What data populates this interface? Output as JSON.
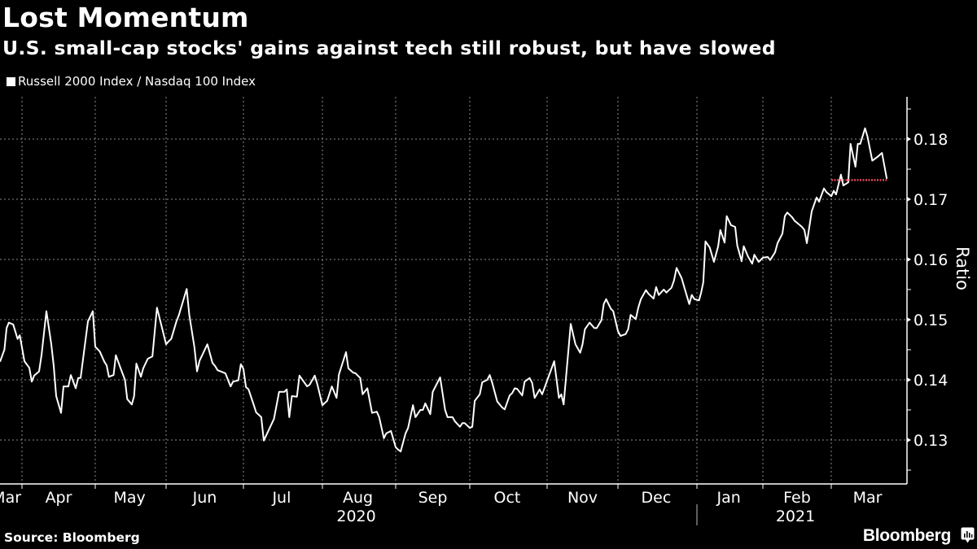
{
  "header": {
    "title": "Lost Momentum",
    "subtitle": "U.S. small-cap stocks' gains against tech still robust, but have slowed"
  },
  "footer": {
    "source": "Source: Bloomberg",
    "brand": "Bloomberg"
  },
  "icons": {
    "brand_icon": "bloomberg-chart-icon",
    "legend_swatch": "square-swatch"
  },
  "colors": {
    "background": "#000000",
    "line": "#ffffff",
    "reference_line": "#e0455a",
    "grid": "#8a8a8a"
  },
  "chart_data": {
    "type": "line",
    "title": "Lost Momentum",
    "subtitle": "U.S. small-cap stocks' gains against tech still robust, but have slowed",
    "xlabel": "",
    "ylabel": "Ratio",
    "legend": {
      "position": "top-left",
      "entries": [
        "Russell 2000 Index / Nasdaq 100 Index"
      ]
    },
    "grid": true,
    "ylim": [
      0.1227,
      0.187
    ],
    "xlim": [
      "2020-03-22",
      "2021-03-31"
    ],
    "y_ticks": [
      0.13,
      0.14,
      0.15,
      0.16,
      0.17,
      0.18
    ],
    "y_tick_labels": [
      "0.13",
      "0.14",
      "0.15",
      "0.16",
      "0.17",
      "0.18"
    ],
    "x_ticks": [
      {
        "label": "Mar",
        "date": "2020-03-25"
      },
      {
        "label": "Apr",
        "date": "2020-04-16"
      },
      {
        "label": "May",
        "date": "2020-05-16"
      },
      {
        "label": "Jun",
        "date": "2020-06-16"
      },
      {
        "label": "Jul",
        "date": "2020-07-16"
      },
      {
        "label": "Aug",
        "date": "2020-08-16"
      },
      {
        "label": "Sep",
        "date": "2020-09-16"
      },
      {
        "label": "Oct",
        "date": "2020-10-16"
      },
      {
        "label": "Nov",
        "date": "2020-11-16"
      },
      {
        "label": "Dec",
        "date": "2020-12-16"
      },
      {
        "label": "Jan",
        "date": "2021-01-16"
      },
      {
        "label": "Feb",
        "date": "2021-02-15"
      },
      {
        "label": "Mar",
        "date": "2021-03-16"
      }
    ],
    "year_labels": [
      {
        "label": "2020",
        "date": "2020-08-16"
      },
      {
        "label": "2021",
        "date": "2021-02-15"
      }
    ],
    "series": [
      {
        "name": "Russell 2000 Index / Nasdaq 100 Index",
        "points": [
          [
            "2020-03-22",
            0.143
          ],
          [
            "2020-03-24",
            0.145
          ],
          [
            "2020-03-25",
            0.1486
          ],
          [
            "2020-03-26",
            0.1495
          ],
          [
            "2020-03-28",
            0.1492
          ],
          [
            "2020-03-30",
            0.1468
          ],
          [
            "2020-03-31",
            0.1474
          ],
          [
            "2020-04-02",
            0.1431
          ],
          [
            "2020-04-04",
            0.142
          ],
          [
            "2020-04-05",
            0.1397
          ],
          [
            "2020-04-06",
            0.1407
          ],
          [
            "2020-04-08",
            0.1414
          ],
          [
            "2020-04-09",
            0.1441
          ],
          [
            "2020-04-11",
            0.1514
          ],
          [
            "2020-04-13",
            0.1459
          ],
          [
            "2020-04-14",
            0.1423
          ],
          [
            "2020-04-15",
            0.1373
          ],
          [
            "2020-04-17",
            0.1345
          ],
          [
            "2020-04-18",
            0.1389
          ],
          [
            "2020-04-20",
            0.1389
          ],
          [
            "2020-04-21",
            0.1408
          ],
          [
            "2020-04-23",
            0.1386
          ],
          [
            "2020-04-24",
            0.1403
          ],
          [
            "2020-04-25",
            0.1403
          ],
          [
            "2020-04-28",
            0.1497
          ],
          [
            "2020-04-30",
            0.1514
          ],
          [
            "2020-05-01",
            0.1455
          ],
          [
            "2020-05-03",
            0.1447
          ],
          [
            "2020-05-05",
            0.143
          ],
          [
            "2020-05-06",
            0.1424
          ],
          [
            "2020-05-07",
            0.1405
          ],
          [
            "2020-05-09",
            0.1408
          ],
          [
            "2020-05-10",
            0.1441
          ],
          [
            "2020-05-12",
            0.142
          ],
          [
            "2020-05-14",
            0.14
          ],
          [
            "2020-05-15",
            0.1368
          ],
          [
            "2020-05-17",
            0.1359
          ],
          [
            "2020-05-18",
            0.1373
          ],
          [
            "2020-05-19",
            0.1427
          ],
          [
            "2020-05-21",
            0.1405
          ],
          [
            "2020-05-22",
            0.1419
          ],
          [
            "2020-05-24",
            0.1435
          ],
          [
            "2020-05-26",
            0.1439
          ],
          [
            "2020-05-28",
            0.152
          ],
          [
            "2020-06-01",
            0.1459
          ],
          [
            "2020-06-02",
            0.1464
          ],
          [
            "2020-06-03",
            0.1468
          ],
          [
            "2020-06-05",
            0.1497
          ],
          [
            "2020-06-06",
            0.1508
          ],
          [
            "2020-06-09",
            0.1551
          ],
          [
            "2020-06-10",
            0.1508
          ],
          [
            "2020-06-12",
            0.1454
          ],
          [
            "2020-06-13",
            0.1414
          ],
          [
            "2020-06-14",
            0.1432
          ],
          [
            "2020-06-17",
            0.1459
          ],
          [
            "2020-06-19",
            0.1428
          ],
          [
            "2020-06-20",
            0.1423
          ],
          [
            "2020-06-21",
            0.1416
          ],
          [
            "2020-06-24",
            0.1411
          ],
          [
            "2020-06-26",
            0.1389
          ],
          [
            "2020-06-27",
            0.1397
          ],
          [
            "2020-06-29",
            0.1399
          ],
          [
            "2020-06-30",
            0.1426
          ],
          [
            "2020-07-01",
            0.1418
          ],
          [
            "2020-07-02",
            0.1388
          ],
          [
            "2020-07-03",
            0.1384
          ],
          [
            "2020-07-05",
            0.1359
          ],
          [
            "2020-07-06",
            0.1346
          ],
          [
            "2020-07-08",
            0.1338
          ],
          [
            "2020-07-09",
            0.1299
          ],
          [
            "2020-07-13",
            0.1335
          ],
          [
            "2020-07-15",
            0.138
          ],
          [
            "2020-07-17",
            0.138
          ],
          [
            "2020-07-18",
            0.1384
          ],
          [
            "2020-07-19",
            0.1338
          ],
          [
            "2020-07-20",
            0.1373
          ],
          [
            "2020-07-22",
            0.1372
          ],
          [
            "2020-07-23",
            0.1407
          ],
          [
            "2020-07-26",
            0.1389
          ],
          [
            "2020-07-27",
            0.1392
          ],
          [
            "2020-07-29",
            0.1407
          ],
          [
            "2020-07-30",
            0.1393
          ],
          [
            "2020-08-01",
            0.1358
          ],
          [
            "2020-08-03",
            0.1365
          ],
          [
            "2020-08-05",
            0.1389
          ],
          [
            "2020-08-07",
            0.137
          ],
          [
            "2020-08-08",
            0.1409
          ],
          [
            "2020-08-11",
            0.1446
          ],
          [
            "2020-08-12",
            0.1419
          ],
          [
            "2020-08-14",
            0.1412
          ],
          [
            "2020-08-15",
            0.1411
          ],
          [
            "2020-08-17",
            0.1403
          ],
          [
            "2020-08-18",
            0.1376
          ],
          [
            "2020-08-20",
            0.1386
          ],
          [
            "2020-08-22",
            0.1345
          ],
          [
            "2020-08-24",
            0.1347
          ],
          [
            "2020-08-25",
            0.1338
          ],
          [
            "2020-08-27",
            0.1303
          ],
          [
            "2020-08-28",
            0.1311
          ],
          [
            "2020-08-30",
            0.1315
          ],
          [
            "2020-09-01",
            0.1288
          ],
          [
            "2020-09-02",
            0.1284
          ],
          [
            "2020-09-03",
            0.1281
          ],
          [
            "2020-09-05",
            0.1311
          ],
          [
            "2020-09-06",
            0.132
          ],
          [
            "2020-09-08",
            0.1358
          ],
          [
            "2020-09-09",
            0.1338
          ],
          [
            "2020-09-11",
            0.135
          ],
          [
            "2020-09-12",
            0.135
          ],
          [
            "2020-09-13",
            0.1361
          ],
          [
            "2020-09-15",
            0.1343
          ],
          [
            "2020-09-16",
            0.138
          ],
          [
            "2020-09-19",
            0.1404
          ],
          [
            "2020-09-21",
            0.135
          ],
          [
            "2020-09-22",
            0.1338
          ],
          [
            "2020-09-24",
            0.1338
          ],
          [
            "2020-09-25",
            0.1331
          ],
          [
            "2020-09-27",
            0.1322
          ],
          [
            "2020-09-28",
            0.1328
          ],
          [
            "2020-09-29",
            0.1328
          ],
          [
            "2020-10-01",
            0.132
          ],
          [
            "2020-10-02",
            0.1322
          ],
          [
            "2020-10-03",
            0.1365
          ],
          [
            "2020-10-05",
            0.1376
          ],
          [
            "2020-10-06",
            0.1396
          ],
          [
            "2020-10-08",
            0.14
          ],
          [
            "2020-10-09",
            0.1408
          ],
          [
            "2020-10-10",
            0.1395
          ],
          [
            "2020-10-12",
            0.1364
          ],
          [
            "2020-10-14",
            0.1354
          ],
          [
            "2020-10-15",
            0.1351
          ],
          [
            "2020-10-17",
            0.1374
          ],
          [
            "2020-10-18",
            0.1378
          ],
          [
            "2020-10-19",
            0.1386
          ],
          [
            "2020-10-20",
            0.1385
          ],
          [
            "2020-10-22",
            0.1374
          ],
          [
            "2020-10-23",
            0.1397
          ],
          [
            "2020-10-25",
            0.1403
          ],
          [
            "2020-10-26",
            0.1395
          ],
          [
            "2020-10-27",
            0.137
          ],
          [
            "2020-10-29",
            0.1384
          ],
          [
            "2020-10-30",
            0.1376
          ],
          [
            "2020-11-04",
            0.1431
          ],
          [
            "2020-11-06",
            0.137
          ],
          [
            "2020-11-07",
            0.1376
          ],
          [
            "2020-11-08",
            0.1359
          ],
          [
            "2020-11-11",
            0.1493
          ],
          [
            "2020-11-13",
            0.1459
          ],
          [
            "2020-11-15",
            0.1445
          ],
          [
            "2020-11-16",
            0.1459
          ],
          [
            "2020-11-17",
            0.1484
          ],
          [
            "2020-11-19",
            0.1495
          ],
          [
            "2020-11-21",
            0.1486
          ],
          [
            "2020-11-22",
            0.1486
          ],
          [
            "2020-11-24",
            0.1499
          ],
          [
            "2020-11-25",
            0.1526
          ],
          [
            "2020-11-26",
            0.1534
          ],
          [
            "2020-11-28",
            0.1518
          ],
          [
            "2020-11-29",
            0.1514
          ],
          [
            "2020-12-01",
            0.1481
          ],
          [
            "2020-12-02",
            0.1473
          ],
          [
            "2020-12-04",
            0.1476
          ],
          [
            "2020-12-05",
            0.1484
          ],
          [
            "2020-12-06",
            0.1508
          ],
          [
            "2020-12-08",
            0.1501
          ],
          [
            "2020-12-09",
            0.152
          ],
          [
            "2020-12-10",
            0.1534
          ],
          [
            "2020-12-12",
            0.1549
          ],
          [
            "2020-12-13",
            0.1543
          ],
          [
            "2020-12-15",
            0.1535
          ],
          [
            "2020-12-16",
            0.1554
          ],
          [
            "2020-12-17",
            0.1541
          ],
          [
            "2020-12-19",
            0.155
          ],
          [
            "2020-12-20",
            0.1545
          ],
          [
            "2020-12-22",
            0.1553
          ],
          [
            "2020-12-23",
            0.1565
          ],
          [
            "2020-12-24",
            0.1586
          ],
          [
            "2020-12-26",
            0.1569
          ],
          [
            "2020-12-27",
            0.1554
          ],
          [
            "2020-12-29",
            0.1526
          ],
          [
            "2020-12-30",
            0.1541
          ],
          [
            "2020-12-31",
            0.1534
          ],
          [
            "2021-01-02",
            0.1532
          ],
          [
            "2021-01-03",
            0.1545
          ],
          [
            "2021-01-04",
            0.1562
          ],
          [
            "2021-01-05",
            0.163
          ],
          [
            "2021-01-07",
            0.162
          ],
          [
            "2021-01-09",
            0.1596
          ],
          [
            "2021-01-11",
            0.1622
          ],
          [
            "2021-01-12",
            0.1649
          ],
          [
            "2021-01-14",
            0.1628
          ],
          [
            "2021-01-15",
            0.1672
          ],
          [
            "2021-01-17",
            0.1657
          ],
          [
            "2021-01-19",
            0.1654
          ],
          [
            "2021-01-20",
            0.1623
          ],
          [
            "2021-01-22",
            0.1597
          ],
          [
            "2021-01-23",
            0.1622
          ],
          [
            "2021-01-25",
            0.1605
          ],
          [
            "2021-01-27",
            0.1593
          ],
          [
            "2021-01-28",
            0.1608
          ],
          [
            "2021-01-30",
            0.1596
          ],
          [
            "2021-02-01",
            0.1603
          ],
          [
            "2021-02-03",
            0.1604
          ],
          [
            "2021-02-04",
            0.1599
          ],
          [
            "2021-02-06",
            0.1612
          ],
          [
            "2021-02-07",
            0.1627
          ],
          [
            "2021-02-09",
            0.1643
          ],
          [
            "2021-02-10",
            0.1672
          ],
          [
            "2021-02-11",
            0.1678
          ],
          [
            "2021-02-13",
            0.167
          ],
          [
            "2021-02-14",
            0.1664
          ],
          [
            "2021-02-15",
            0.1661
          ],
          [
            "2021-02-17",
            0.1654
          ],
          [
            "2021-02-18",
            0.1649
          ],
          [
            "2021-02-19",
            0.1627
          ],
          [
            "2021-02-21",
            0.168
          ],
          [
            "2021-02-23",
            0.1703
          ],
          [
            "2021-02-24",
            0.1696
          ],
          [
            "2021-02-26",
            0.1718
          ],
          [
            "2021-02-27",
            0.1712
          ],
          [
            "2021-03-01",
            0.1705
          ],
          [
            "2021-03-02",
            0.1714
          ],
          [
            "2021-03-03",
            0.1708
          ],
          [
            "2021-03-05",
            0.1741
          ],
          [
            "2021-03-06",
            0.1723
          ],
          [
            "2021-03-08",
            0.1728
          ],
          [
            "2021-03-09",
            0.1792
          ],
          [
            "2021-03-11",
            0.1754
          ],
          [
            "2021-03-12",
            0.1792
          ],
          [
            "2021-03-13",
            0.1792
          ],
          [
            "2021-03-15",
            0.1818
          ],
          [
            "2021-03-16",
            0.1804
          ],
          [
            "2021-03-18",
            0.1764
          ],
          [
            "2021-03-20",
            0.177
          ],
          [
            "2021-03-22",
            0.1777
          ],
          [
            "2021-03-24",
            0.1734
          ]
        ]
      }
    ],
    "annotations": [
      {
        "type": "horizontal-dotted-line",
        "value": 0.1732,
        "from": "2021-03-01",
        "to": "2021-03-24",
        "color": "#e0455a",
        "description": "current level reference"
      }
    ]
  }
}
